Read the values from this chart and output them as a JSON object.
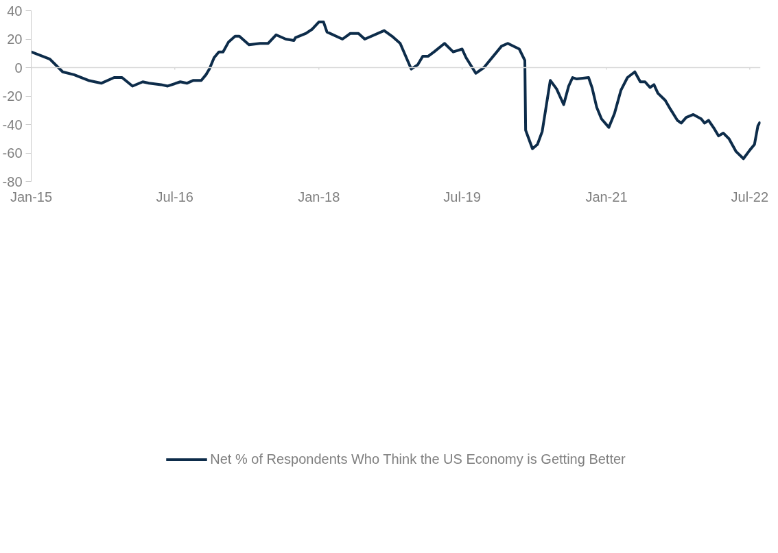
{
  "chart_data": {
    "type": "line",
    "legend": "bottom",
    "marker": "none",
    "line_style": "solid",
    "xlim": [
      "2015-01-01",
      "2022-08-11"
    ],
    "xticks": [
      {
        "value": "2015-01-01",
        "label": "Jan-15"
      },
      {
        "value": "2016-07-01",
        "label": "Jul-16"
      },
      {
        "value": "2018-01-01",
        "label": "Jan-18"
      },
      {
        "value": "2019-07-01",
        "label": "Jul-19"
      },
      {
        "value": "2021-01-01",
        "label": "Jan-21"
      },
      {
        "value": "2022-07-01",
        "label": "Jul-22"
      }
    ],
    "ref_lines": [
      {
        "axis": "y",
        "value": 0,
        "color": "#d9d9d9"
      }
    ],
    "ylim": [
      -80,
      40
    ],
    "yticks": [
      -80,
      -60,
      -40,
      -20,
      0,
      20,
      40
    ],
    "x": [
      "2015-01-01",
      "2015-03-13",
      "2015-05-01",
      "2015-06-13",
      "2015-08-07",
      "2015-09-25",
      "2015-11-13",
      "2015-12-13",
      "2016-01-22",
      "2016-03-01",
      "2016-03-25",
      "2016-05-10",
      "2016-06-04",
      "2016-07-22",
      "2016-08-16",
      "2016-09-10",
      "2016-10-10",
      "2016-10-28",
      "2016-11-10",
      "2016-11-28",
      "2016-12-16",
      "2017-01-01",
      "2017-01-22",
      "2017-02-16",
      "2017-03-04",
      "2017-04-10",
      "2017-05-22",
      "2017-06-22",
      "2017-07-22",
      "2017-08-28",
      "2017-09-28",
      "2017-10-04",
      "2017-11-13",
      "2017-12-07",
      "2018-01-01",
      "2018-01-19",
      "2018-02-01",
      "2018-04-01",
      "2018-05-01",
      "2018-06-01",
      "2018-06-25",
      "2018-09-07",
      "2018-10-07",
      "2018-11-07",
      "2018-12-19",
      "2019-01-13",
      "2019-02-01",
      "2019-02-22",
      "2019-03-16",
      "2019-04-25",
      "2019-05-28",
      "2019-07-01",
      "2019-07-16",
      "2019-08-22",
      "2019-09-22",
      "2019-11-28",
      "2019-12-22",
      "2020-02-04",
      "2020-02-25",
      "2020-02-28",
      "2020-03-25",
      "2020-04-13",
      "2020-05-01",
      "2020-06-01",
      "2020-06-25",
      "2020-07-22",
      "2020-08-10",
      "2020-08-25",
      "2020-09-10",
      "2020-10-25",
      "2020-11-07",
      "2020-11-25",
      "2020-12-13",
      "2021-01-10",
      "2021-02-01",
      "2021-02-25",
      "2021-03-22",
      "2021-04-19",
      "2021-05-10",
      "2021-05-28",
      "2021-06-16",
      "2021-07-01",
      "2021-07-16",
      "2021-08-13",
      "2021-09-01",
      "2021-09-28",
      "2021-10-13",
      "2021-11-01",
      "2021-11-28",
      "2021-12-28",
      "2022-01-10",
      "2022-01-25",
      "2022-02-16",
      "2022-03-04",
      "2022-03-22",
      "2022-04-13",
      "2022-05-10",
      "2022-06-07",
      "2022-07-01",
      "2022-07-19",
      "2022-08-01",
      "2022-08-10"
    ],
    "series": [
      {
        "name": "Net % of Respondents Who Think the US Economy is Getting Better",
        "color": "#0d2c4a",
        "values": [
          11,
          6,
          -3,
          -5,
          -9,
          -11,
          -7,
          -7,
          -13,
          -10,
          -11,
          -12,
          -13,
          -10,
          -11,
          -9,
          -9,
          -5,
          -1,
          7,
          11,
          11,
          18,
          22,
          22,
          16,
          17,
          17,
          23,
          20,
          19,
          21,
          24,
          27,
          32,
          32,
          25,
          20,
          24,
          24,
          20,
          26,
          22,
          17,
          -1,
          2,
          8,
          8,
          11,
          17,
          11,
          13,
          7,
          -4,
          0,
          15,
          17,
          13,
          5,
          -44,
          -57,
          -54,
          -45,
          -9,
          -15,
          -26,
          -13,
          -7,
          -8,
          -7,
          -14,
          -28,
          -36,
          -42,
          -32,
          -16,
          -7,
          -3,
          -10,
          -10,
          -14,
          -12,
          -18,
          -23,
          -29,
          -37,
          -39,
          -35,
          -33,
          -36,
          -39,
          -37,
          -43,
          -48,
          -46,
          -50,
          -59,
          -64,
          -58,
          -54,
          -41,
          -38
        ]
      }
    ]
  }
}
